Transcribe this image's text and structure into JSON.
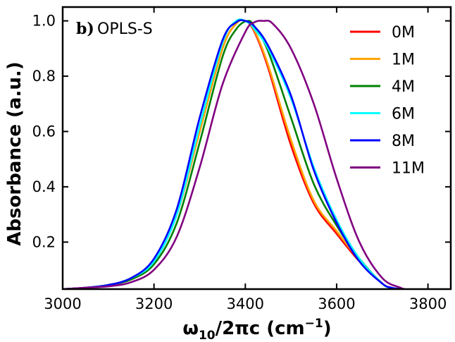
{
  "chart_data": {
    "type": "line",
    "panel_label": "b)",
    "panel_name": "OPLS-S",
    "xlabel": "ω₁₀/2πc (cm⁻¹)",
    "xlabel_parts": {
      "main": "ω",
      "sub": "10",
      "rest": "/2πc (cm",
      "sup": "−1",
      "close": ")"
    },
    "ylabel": "Absorbance (a.u.)",
    "xlim": [
      3000,
      3850
    ],
    "ylim": [
      0.03,
      1.05
    ],
    "xticks": [
      3000,
      3200,
      3400,
      3600,
      3800
    ],
    "yticks": [
      0.2,
      0.4,
      0.6,
      0.8,
      1.0
    ],
    "ytick_labels": [
      "0.2",
      "0.4",
      "0.6",
      "0.8",
      "1.0"
    ],
    "legend_position": "top-right",
    "series": [
      {
        "name": "0M",
        "color": "#ff0000",
        "x": [
          3000,
          3050,
          3100,
          3150,
          3200,
          3250,
          3300,
          3350,
          3380,
          3400,
          3420,
          3450,
          3500,
          3550,
          3600,
          3650,
          3700,
          3720,
          3740
        ],
        "y": [
          0.03,
          0.035,
          0.045,
          0.07,
          0.13,
          0.3,
          0.6,
          0.9,
          0.99,
          1.0,
          0.96,
          0.83,
          0.55,
          0.34,
          0.23,
          0.13,
          0.05,
          0.035,
          0.03
        ]
      },
      {
        "name": "1M",
        "color": "#ffa500",
        "x": [
          3000,
          3050,
          3100,
          3150,
          3200,
          3250,
          3300,
          3350,
          3380,
          3400,
          3420,
          3450,
          3500,
          3550,
          3600,
          3650,
          3700,
          3720,
          3740
        ],
        "y": [
          0.03,
          0.035,
          0.045,
          0.07,
          0.13,
          0.3,
          0.6,
          0.9,
          0.99,
          1.0,
          0.965,
          0.84,
          0.57,
          0.35,
          0.24,
          0.135,
          0.05,
          0.035,
          0.03
        ]
      },
      {
        "name": "4M",
        "color": "#008000",
        "x": [
          3000,
          3050,
          3100,
          3150,
          3200,
          3250,
          3300,
          3350,
          3380,
          3405,
          3420,
          3450,
          3500,
          3550,
          3600,
          3650,
          3700,
          3720,
          3740
        ],
        "y": [
          0.03,
          0.035,
          0.045,
          0.065,
          0.12,
          0.27,
          0.56,
          0.87,
          0.97,
          1.0,
          0.98,
          0.89,
          0.65,
          0.41,
          0.26,
          0.14,
          0.05,
          0.035,
          0.03
        ]
      },
      {
        "name": "6M",
        "color": "#00ffff",
        "x": [
          3000,
          3050,
          3100,
          3150,
          3200,
          3250,
          3300,
          3350,
          3380,
          3405,
          3420,
          3450,
          3500,
          3550,
          3600,
          3650,
          3700,
          3720,
          3740
        ],
        "y": [
          0.03,
          0.035,
          0.045,
          0.07,
          0.13,
          0.3,
          0.62,
          0.92,
          1.0,
          0.995,
          0.97,
          0.9,
          0.72,
          0.47,
          0.28,
          0.14,
          0.05,
          0.035,
          0.03
        ]
      },
      {
        "name": "8M",
        "color": "#0000ff",
        "x": [
          3000,
          3050,
          3100,
          3150,
          3200,
          3250,
          3300,
          3350,
          3380,
          3400,
          3420,
          3450,
          3500,
          3550,
          3600,
          3650,
          3700,
          3720,
          3740
        ],
        "y": [
          0.03,
          0.035,
          0.045,
          0.07,
          0.14,
          0.32,
          0.65,
          0.93,
          0.995,
          1.0,
          0.98,
          0.91,
          0.73,
          0.46,
          0.27,
          0.13,
          0.05,
          0.035,
          0.03
        ]
      },
      {
        "name": "11M",
        "color": "#800080",
        "x": [
          3000,
          3050,
          3100,
          3150,
          3200,
          3250,
          3300,
          3350,
          3400,
          3420,
          3440,
          3460,
          3500,
          3550,
          3600,
          3650,
          3700,
          3740,
          3750
        ],
        "y": [
          0.03,
          0.035,
          0.04,
          0.055,
          0.1,
          0.22,
          0.47,
          0.77,
          0.96,
          0.995,
          1.0,
          0.99,
          0.9,
          0.7,
          0.43,
          0.2,
          0.07,
          0.035,
          0.03
        ]
      }
    ]
  }
}
